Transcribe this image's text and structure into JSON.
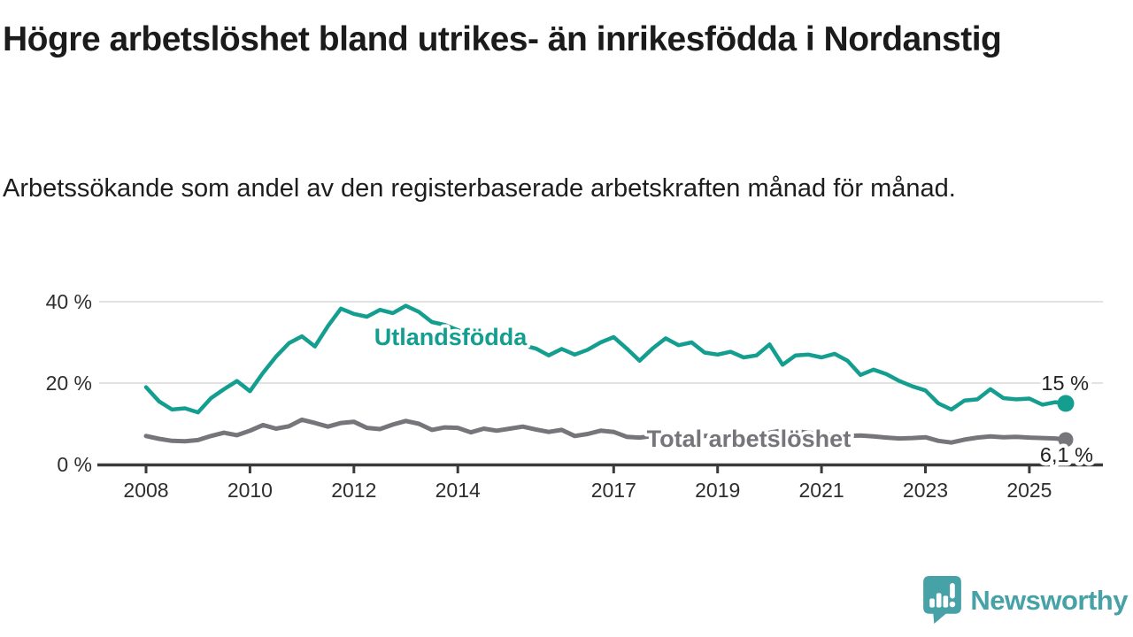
{
  "title": "Högre arbetslöshet bland utrikes- än inrikesfödda i Nordanstig",
  "subtitle": "Arbetssökande som andel av den registerbaserade arbetskraften månad för månad.",
  "branding": {
    "logo_text": "Newsworthy",
    "logo_icon": "bar-chart-speech-bubble"
  },
  "colors": {
    "foreign_born": "#149e90",
    "total": "#76767a",
    "brand": "#46a2a6",
    "grid": "#d8d8d8",
    "axis": "#3a3a3a",
    "tick_text": "#2e2e2e",
    "value_text": "#222222"
  },
  "chart_data": {
    "type": "line",
    "title": "",
    "xlabel": "",
    "ylabel": "",
    "xlim": [
      2007.85,
      2026.2
    ],
    "ylim": [
      0,
      45
    ],
    "grid": "horizontal",
    "legend": "inline-labels-on-lines",
    "yticks": [
      {
        "value": 0,
        "label": "0 %"
      },
      {
        "value": 20,
        "label": "20 %"
      },
      {
        "value": 40,
        "label": "40 %"
      }
    ],
    "xticks": [
      {
        "value": 2008,
        "label": "2008"
      },
      {
        "value": 2010,
        "label": "2010"
      },
      {
        "value": 2012,
        "label": "2012"
      },
      {
        "value": 2014,
        "label": "2014"
      },
      {
        "value": 2017,
        "label": "2017"
      },
      {
        "value": 2019,
        "label": "2019"
      },
      {
        "value": 2021,
        "label": "2021"
      },
      {
        "value": 2023,
        "label": "2023"
      },
      {
        "value": 2025,
        "label": "2025"
      }
    ],
    "x": [
      2008,
      2008.25,
      2008.5,
      2008.75,
      2009,
      2009.25,
      2009.5,
      2009.75,
      2010,
      2010.25,
      2010.5,
      2010.75,
      2011,
      2011.25,
      2011.5,
      2011.75,
      2012,
      2012.25,
      2012.5,
      2012.75,
      2013,
      2013.25,
      2013.5,
      2013.75,
      2014,
      2014.25,
      2014.5,
      2014.75,
      2015,
      2015.25,
      2015.5,
      2015.75,
      2016,
      2016.25,
      2016.5,
      2016.75,
      2017,
      2017.25,
      2017.5,
      2017.75,
      2018,
      2018.25,
      2018.5,
      2018.75,
      2019,
      2019.25,
      2019.5,
      2019.75,
      2020,
      2020.25,
      2020.5,
      2020.75,
      2021,
      2021.25,
      2021.5,
      2021.75,
      2022,
      2022.25,
      2022.5,
      2022.75,
      2023,
      2023.25,
      2023.5,
      2023.75,
      2024,
      2024.25,
      2024.5,
      2024.75,
      2025,
      2025.25,
      2025.5,
      2025.7
    ],
    "series": [
      {
        "name": "Utlandsfödda",
        "color_key": "foreign_born",
        "end_label": "15 %",
        "end_value": 15,
        "label_anchor": {
          "year": 2013.86,
          "pct": 29.3
        },
        "values": [
          19.0,
          15.5,
          13.5,
          13.8,
          12.8,
          16.3,
          18.5,
          20.5,
          18.0,
          22.5,
          26.5,
          29.8,
          31.5,
          29.0,
          34.0,
          38.3,
          37.0,
          36.3,
          38.0,
          37.2,
          39.0,
          37.5,
          35.0,
          34.3,
          33.0,
          32.0,
          31.0,
          30.3,
          29.8,
          29.3,
          28.5,
          26.8,
          28.4,
          27.0,
          28.2,
          30.0,
          31.3,
          28.5,
          25.5,
          28.5,
          31.0,
          29.3,
          30.0,
          27.5,
          27.0,
          27.7,
          26.3,
          26.8,
          29.5,
          24.5,
          26.8,
          27.0,
          26.3,
          27.2,
          25.5,
          22.0,
          23.3,
          22.2,
          20.5,
          19.2,
          18.2,
          15.0,
          13.5,
          15.7,
          16.0,
          18.5,
          16.3,
          16.0,
          16.2,
          14.7,
          15.3,
          15.0
        ]
      },
      {
        "name": "Total arbetslöshet",
        "color_key": "total",
        "end_label": "6,1 %",
        "end_value": 6.1,
        "label_anchor": {
          "year": 2019.6,
          "pct": 4.3
        },
        "values": [
          7.0,
          6.3,
          5.8,
          5.7,
          6.0,
          7.0,
          7.8,
          7.2,
          8.3,
          9.7,
          8.8,
          9.4,
          11.0,
          10.2,
          9.3,
          10.2,
          10.5,
          9.0,
          8.7,
          9.8,
          10.7,
          10.0,
          8.5,
          9.1,
          9.0,
          7.9,
          8.8,
          8.3,
          8.8,
          9.3,
          8.6,
          8.0,
          8.5,
          7.0,
          7.5,
          8.3,
          8.0,
          6.8,
          6.6,
          7.0,
          7.4,
          7.1,
          6.8,
          7.0,
          7.2,
          7.0,
          6.8,
          7.0,
          7.8,
          8.4,
          8.2,
          7.8,
          7.5,
          7.2,
          7.0,
          7.1,
          6.9,
          6.6,
          6.4,
          6.5,
          6.7,
          5.8,
          5.4,
          6.1,
          6.6,
          6.9,
          6.7,
          6.8,
          6.6,
          6.5,
          6.4,
          6.1
        ]
      }
    ]
  }
}
